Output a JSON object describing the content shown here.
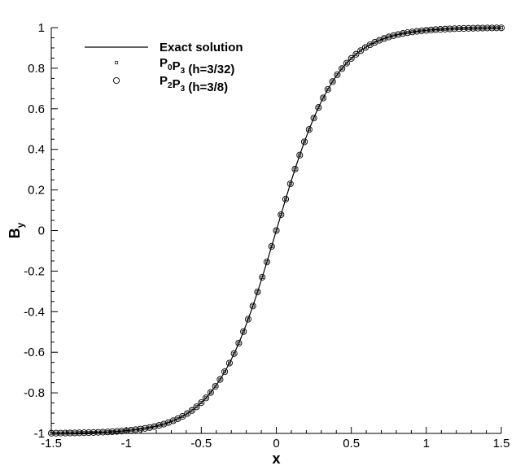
{
  "chart_data": {
    "type": "line",
    "title": "",
    "xlabel": "x",
    "ylabel": "B",
    "ylabel_subscript": "y",
    "xlim": [
      -1.5,
      1.5
    ],
    "ylim": [
      -1,
      1
    ],
    "x_ticks": [
      -1.5,
      -1,
      -0.5,
      0,
      0.5,
      1,
      1.5
    ],
    "x_tick_labels": [
      "-1.5",
      "-1",
      "-0.5",
      "0",
      "0.5",
      "1",
      "1.5"
    ],
    "y_ticks": [
      -1,
      -0.8,
      -0.6,
      -0.4,
      -0.2,
      0,
      0.2,
      0.4,
      0.6,
      0.8,
      1
    ],
    "y_tick_labels": [
      "-1",
      "-0.8",
      "-0.6",
      "-0.4",
      "-0.2",
      "0",
      "0.2",
      "0.4",
      "0.6",
      "0.8",
      "1"
    ],
    "grid": false,
    "legend_position": "top-left",
    "series": [
      {
        "name": "Exact solution",
        "style": "solid-line",
        "function": "tanh",
        "scale": 0.4
      },
      {
        "name": "P0P3 (h=3/32)",
        "label_parts": [
          [
            "P",
            "0"
          ],
          [
            "P",
            "3"
          ],
          [
            " (h=3/32)",
            ""
          ]
        ],
        "style": "small-square-marker",
        "x_start": -1.5,
        "x_end": 1.5,
        "count": 97
      },
      {
        "name": "P2P3 (h=3/8)",
        "label_parts": [
          [
            "P",
            "2"
          ],
          [
            "P",
            "3"
          ],
          [
            " (h=3/8)",
            ""
          ]
        ],
        "style": "open-circle-marker",
        "x_start": -1.5,
        "x_end": 1.5,
        "count": 97
      }
    ]
  }
}
